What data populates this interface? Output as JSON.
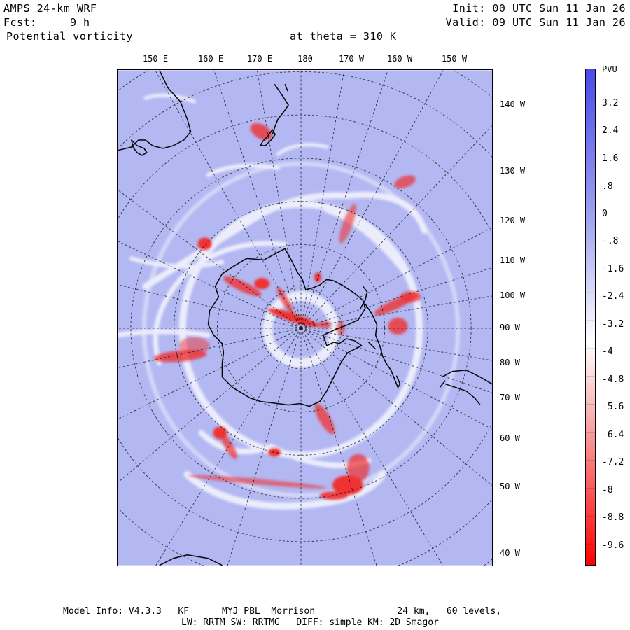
{
  "header": {
    "model": "AMPS 24-km WRF",
    "forecast_label": "Fcst:",
    "forecast_value": "9 h",
    "field": "Potential vorticity",
    "level": "at theta = 310 K",
    "init": "Init: 00 UTC Sun 11 Jan 26",
    "valid": "Valid: 09 UTC Sun 11 Jan 26"
  },
  "map": {
    "top_lon_labels": [
      "150 E",
      "160 E",
      "170 E",
      "180",
      "170 W",
      "160 W",
      "150 W"
    ],
    "right_lon_labels": [
      "140 W",
      "130 W",
      "120 W",
      "110 W",
      "100 W",
      "90 W",
      "80 W",
      "70 W",
      "60 W",
      "50 W",
      "40 W"
    ],
    "background_color": "#b3b8f2",
    "coast_color": "#000000"
  },
  "colorbar": {
    "unit": "PVU",
    "labels": [
      "3.2",
      "2.4",
      "1.6",
      ".8",
      "0",
      "-.8",
      "-1.6",
      "-2.4",
      "-3.2",
      "-4",
      "-4.8",
      "-5.6",
      "-6.4",
      "-7.2",
      "-8",
      "-8.8",
      "-9.6"
    ],
    "positive_color": "#4a4ae8",
    "zero_color": "#ffffff",
    "negative_color": "#ff0000"
  },
  "footer": {
    "line1": "Model Info: V4.3.3   KF      MYJ PBL  Morrison               24 km,   60 levels,",
    "line2": "LW: RRTM SW: RRTMG   DIFF: simple KM: 2D Smagor"
  }
}
